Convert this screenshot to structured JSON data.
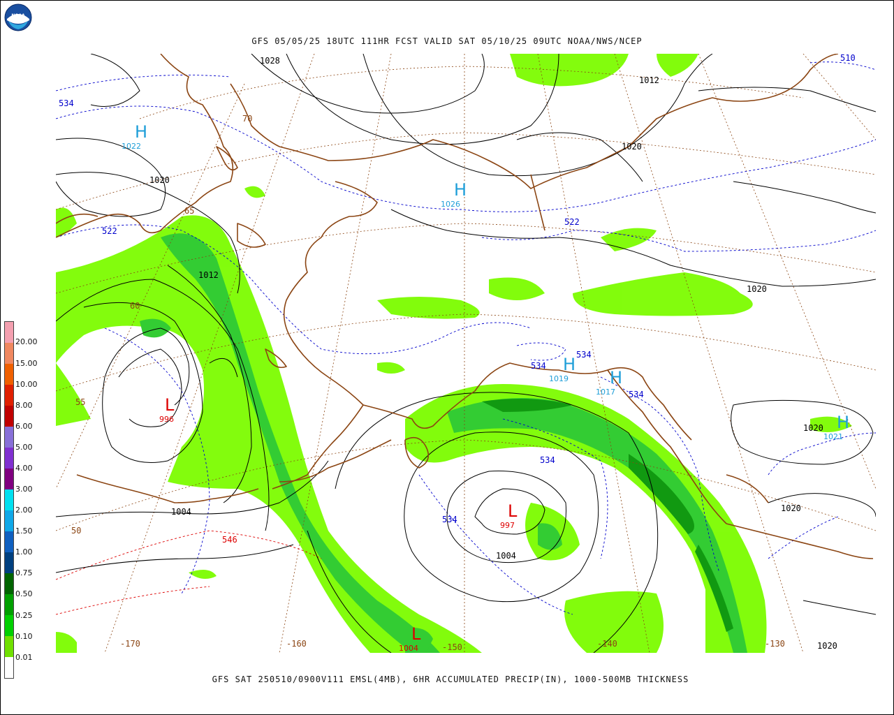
{
  "title": "GFS 05/05/25 18UTC 111HR FCST VALID SAT 05/10/25 09UTC NOAA/NWS/NCEP",
  "footer": "GFS SAT 250510/0900V111 EMSL(4MB), 6HR ACCUMULATED PRECIP(IN), 1000-500MB THICKNESS",
  "logo_text": "NOAA",
  "colors": {
    "coast": "#8B4513",
    "isobar": "#000000",
    "thickness_cold": "#0000CC",
    "thickness_warm": "#DD0000",
    "grid": "#8B4513",
    "high": "#1E9ED8",
    "low": "#DD0000",
    "precip_light": "#7CFC00",
    "precip_mid": "#33CC33",
    "precip_heavy": "#119911"
  },
  "legend": [
    {
      "label": "20.00",
      "color": "#F4A0B0"
    },
    {
      "label": "15.00",
      "color": "#F08860"
    },
    {
      "label": "10.00",
      "color": "#F06000"
    },
    {
      "label": "8.00",
      "color": "#E02000"
    },
    {
      "label": "6.00",
      "color": "#C00000"
    },
    {
      "label": "5.00",
      "color": "#8870D8"
    },
    {
      "label": "4.00",
      "color": "#8030D0"
    },
    {
      "label": "3.00",
      "color": "#800080"
    },
    {
      "label": "2.00",
      "color": "#00E0F0"
    },
    {
      "label": "1.50",
      "color": "#10A8E8"
    },
    {
      "label": "1.00",
      "color": "#1060C0"
    },
    {
      "label": "0.75",
      "color": "#004080"
    },
    {
      "label": "0.50",
      "color": "#006400"
    },
    {
      "label": "0.25",
      "color": "#00A000"
    },
    {
      "label": "0.10",
      "color": "#00D000"
    },
    {
      "label": "0.01",
      "color": "#70E000"
    },
    {
      "label": "",
      "color": "#FFFFFF"
    }
  ],
  "pressure_centers": [
    {
      "type": "H",
      "value": "1022"
    },
    {
      "type": "H",
      "value": "1026"
    },
    {
      "type": "H",
      "value": "1019"
    },
    {
      "type": "H",
      "value": "1017"
    },
    {
      "type": "H",
      "value": "1021"
    },
    {
      "type": "L",
      "value": "996"
    },
    {
      "type": "L",
      "value": "997"
    },
    {
      "type": "L",
      "value": "1004"
    }
  ],
  "isobar_labels": [
    "1028",
    "1012",
    "1020",
    "1020",
    "1012",
    "1020",
    "1020",
    "1020",
    "1004",
    "1004",
    "1020",
    "1020"
  ],
  "thickness_labels": [
    "534",
    "522",
    "522",
    "510",
    "534",
    "534",
    "534",
    "534",
    "534",
    "534",
    "546"
  ],
  "grid_labels": [
    "-170",
    "-160",
    "-150",
    "-140",
    "-130",
    "50",
    "55",
    "60",
    "65",
    "70"
  ]
}
